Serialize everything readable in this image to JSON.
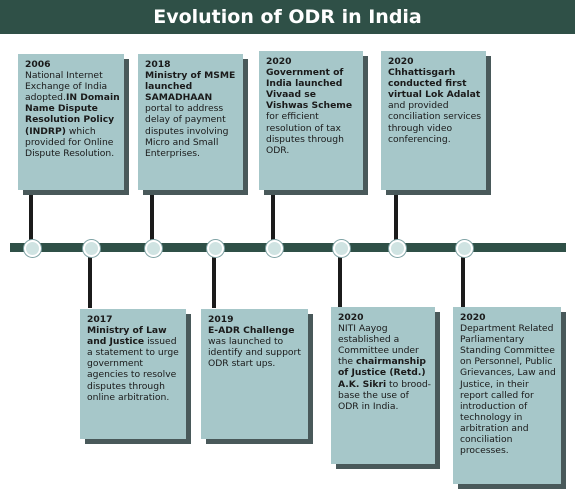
{
  "title": "Evolution of ODR in India",
  "events_top": [
    {
      "year": "2006",
      "parts": [
        {
          "t": "National Internet Exchange of India adopted."
        },
        {
          "t": "IN Domain Name Dispute Resolution Policy (INDRP)",
          "b": true
        },
        {
          "t": " which provided for Online Dispute Resolution."
        }
      ]
    },
    {
      "year": "2018",
      "parts": [
        {
          "t": "Ministry of MSME launched SAMADHAAN",
          "b": true
        },
        {
          "t": " portal to address delay of payment disputes involving Micro and Small Enterprises."
        }
      ]
    },
    {
      "year": "2020",
      "parts": [
        {
          "t": "Government of India launched Vivaad se Vishwas Scheme",
          "b": true
        },
        {
          "t": " for efficient resolution of tax disputes through ODR."
        }
      ]
    },
    {
      "year": "2020",
      "parts": [
        {
          "t": "Chhattisgarh conducted first virtual Lok Adalat",
          "b": true
        },
        {
          "t": " and provided conciliation services through video conferencing."
        }
      ]
    }
  ],
  "events_bottom": [
    {
      "year": "2017",
      "parts": [
        {
          "t": "Ministry of Law and Justice",
          "b": true
        },
        {
          "t": " issued a statement to urge government agencies to resolve disputes through online arbitration."
        }
      ]
    },
    {
      "year": "2019",
      "parts": [
        {
          "t": "E-ADR Challenge",
          "b": true
        },
        {
          "t": " was launched to identify and support ODR start ups."
        }
      ]
    },
    {
      "year": "2020",
      "parts": [
        {
          "t": "NITI Aayog established a Committee under the "
        },
        {
          "t": "chairmanship of Justice (Retd.) A.K. Sikri",
          "b": true
        },
        {
          "t": " to brood-base the use of ODR in India."
        }
      ]
    },
    {
      "year": "2020",
      "parts": [
        {
          "t": "Department Related Parliamentary Standing Committee on Personnel, Public Grievances, Law and Justice, in their report called for introduction of technology in arbitration and conciliation processes."
        }
      ]
    }
  ]
}
